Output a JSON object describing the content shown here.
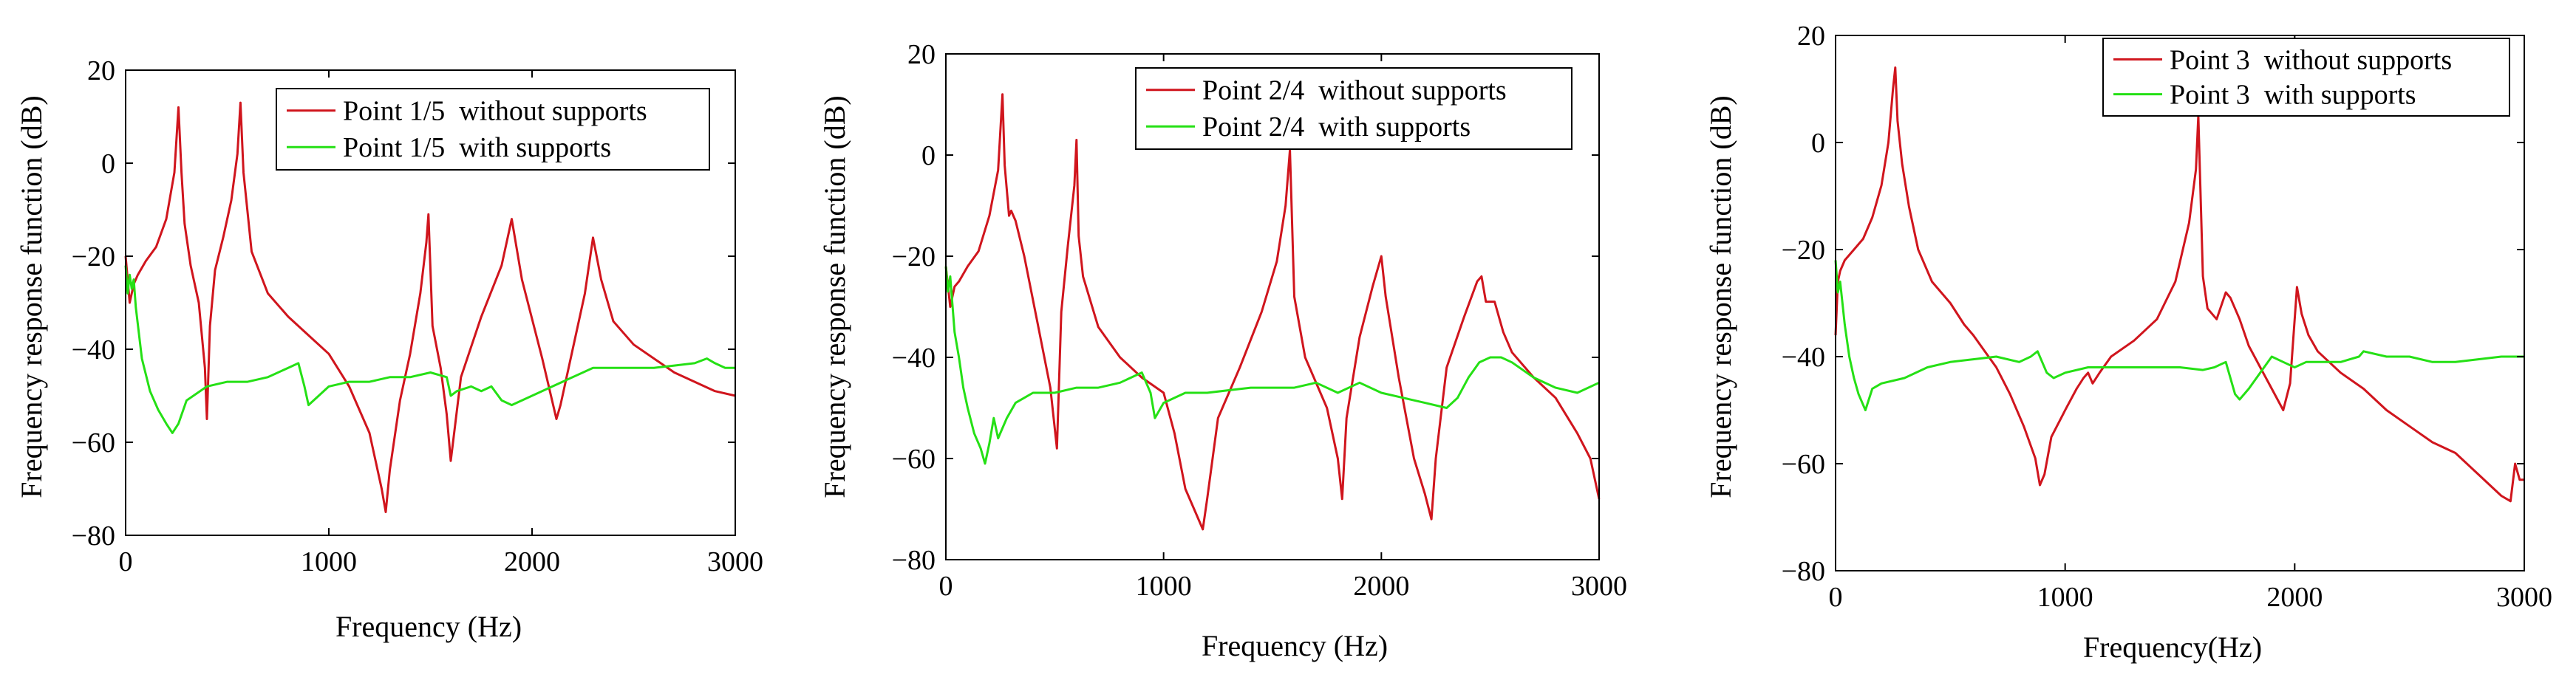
{
  "colors": {
    "without": "#d0151d",
    "with": "#25e015",
    "axis": "#000000",
    "background": "#ffffff"
  },
  "chart_data": [
    {
      "type": "line",
      "title": "",
      "xlabel": "Frequency (Hz)",
      "ylabel": "Frequency response function  (dB)",
      "xlim": [
        0,
        3000
      ],
      "ylim": [
        -80,
        20
      ],
      "xticks": [
        "0",
        "1000",
        "2000",
        "3000"
      ],
      "yticks": [
        "20",
        "0",
        "−20",
        "−40",
        "−60",
        "−80"
      ],
      "legend": {
        "position": "top-right"
      },
      "series": [
        {
          "name": "Point 1/5  without supports",
          "color": "#d0151d",
          "x": [
            0,
            20,
            40,
            60,
            100,
            150,
            200,
            240,
            260,
            275,
            290,
            320,
            360,
            390,
            400,
            415,
            440,
            480,
            520,
            550,
            565,
            580,
            620,
            700,
            800,
            900,
            1000,
            1100,
            1200,
            1260,
            1280,
            1300,
            1350,
            1400,
            1450,
            1480,
            1490,
            1510,
            1550,
            1580,
            1600,
            1650,
            1750,
            1850,
            1900,
            1950,
            2050,
            2120,
            2140,
            2200,
            2260,
            2300,
            2340,
            2400,
            2500,
            2600,
            2700,
            2800,
            2900,
            3000
          ],
          "y": [
            -20,
            -30,
            -26,
            -24,
            -21,
            -18,
            -12,
            -2,
            12,
            -2,
            -13,
            -22,
            -30,
            -44,
            -55,
            -35,
            -23,
            -16,
            -8,
            2,
            13,
            -2,
            -19,
            -28,
            -33,
            -37,
            -41,
            -48,
            -58,
            -70,
            -75,
            -66,
            -51,
            -41,
            -28,
            -17,
            -11,
            -35,
            -44,
            -54,
            -64,
            -46,
            -33,
            -22,
            -12,
            -25,
            -42,
            -55,
            -52,
            -40,
            -28,
            -16,
            -25,
            -34,
            -39,
            -42,
            -45,
            -47,
            -49,
            -50
          ]
        },
        {
          "name": "Point 1/5  with supports",
          "color": "#25e015",
          "x": [
            0,
            10,
            20,
            30,
            40,
            50,
            80,
            120,
            160,
            200,
            230,
            260,
            300,
            400,
            500,
            600,
            700,
            800,
            850,
            880,
            900,
            950,
            1000,
            1100,
            1200,
            1300,
            1400,
            1500,
            1580,
            1600,
            1630,
            1700,
            1750,
            1800,
            1850,
            1900,
            2000,
            2100,
            2200,
            2300,
            2400,
            2500,
            2600,
            2700,
            2800,
            2860,
            2900,
            2950,
            3000
          ],
          "y": [
            -22,
            -28,
            -24,
            -27,
            -25,
            -31,
            -42,
            -49,
            -53,
            -56,
            -58,
            -56,
            -51,
            -48,
            -47,
            -47,
            -46,
            -44,
            -43,
            -48,
            -52,
            -50,
            -48,
            -47,
            -47,
            -46,
            -46,
            -45,
            -46,
            -50,
            -49,
            -48,
            -49,
            -48,
            -51,
            -52,
            -50,
            -48,
            -46,
            -44,
            -44,
            -44,
            -44,
            -43.5,
            -43,
            -42,
            -43,
            -44,
            -44
          ]
        }
      ]
    },
    {
      "type": "line",
      "title": "",
      "xlabel": "Frequency (Hz)",
      "ylabel": "Frequency response function  (dB)",
      "xlim": [
        0,
        3000
      ],
      "ylim": [
        -80,
        20
      ],
      "xticks": [
        "0",
        "1000",
        "2000",
        "3000"
      ],
      "yticks": [
        "20",
        "0",
        "−20",
        "−40",
        "−60",
        "−80"
      ],
      "legend": {
        "position": "top-right"
      },
      "series": [
        {
          "name": "Point 2/4  without supports",
          "color": "#d0151d",
          "x": [
            0,
            20,
            40,
            60,
            100,
            150,
            200,
            240,
            260,
            270,
            290,
            300,
            320,
            360,
            420,
            480,
            510,
            530,
            560,
            590,
            600,
            610,
            630,
            700,
            800,
            900,
            1000,
            1050,
            1100,
            1150,
            1180,
            1200,
            1250,
            1350,
            1450,
            1520,
            1560,
            1580,
            1600,
            1650,
            1750,
            1800,
            1820,
            1840,
            1900,
            1960,
            2000,
            2020,
            2080,
            2150,
            2200,
            2230,
            2250,
            2300,
            2380,
            2440,
            2460,
            2480,
            2520,
            2560,
            2600,
            2700,
            2800,
            2900,
            2960,
            3000
          ],
          "y": [
            -22,
            -30,
            -26,
            -25,
            -22,
            -19,
            -12,
            -3,
            12,
            -2,
            -12,
            -11,
            -13,
            -20,
            -33,
            -46,
            -58,
            -31,
            -18,
            -6,
            3,
            -16,
            -24,
            -34,
            -40,
            -44,
            -47,
            -55,
            -66,
            -71,
            -74,
            -68,
            -52,
            -42,
            -31,
            -21,
            -10,
            1,
            -28,
            -40,
            -50,
            -60,
            -68,
            -52,
            -36,
            -26,
            -20,
            -28,
            -44,
            -60,
            -67,
            -72,
            -60,
            -42,
            -32,
            -25,
            -24,
            -29,
            -29,
            -35,
            -39,
            -44,
            -48,
            -55,
            -60,
            -68
          ]
        },
        {
          "name": "Point 2/4  with supports",
          "color": "#25e015",
          "x": [
            0,
            10,
            20,
            40,
            60,
            80,
            100,
            130,
            160,
            180,
            200,
            220,
            240,
            260,
            280,
            320,
            360,
            400,
            500,
            600,
            700,
            800,
            900,
            920,
            940,
            960,
            1000,
            1100,
            1200,
            1300,
            1400,
            1500,
            1600,
            1700,
            1800,
            1900,
            2000,
            2100,
            2200,
            2300,
            2350,
            2400,
            2450,
            2500,
            2550,
            2600,
            2700,
            2800,
            2900,
            3000
          ],
          "y": [
            -22,
            -27,
            -24,
            -35,
            -40,
            -46,
            -50,
            -55,
            -58,
            -61,
            -57,
            -52,
            -56,
            -54,
            -52,
            -49,
            -48,
            -47,
            -47,
            -46,
            -46,
            -45,
            -43,
            -45,
            -47,
            -52,
            -49,
            -47,
            -47,
            -46.5,
            -46,
            -46,
            -46,
            -45,
            -47,
            -45,
            -47,
            -48,
            -49,
            -50,
            -48,
            -44,
            -41,
            -40,
            -40,
            -41,
            -44,
            -46,
            -47,
            -45
          ]
        }
      ]
    },
    {
      "type": "line",
      "title": "",
      "xlabel": "Frequency(Hz)",
      "ylabel": "Frequency response function  (dB)",
      "xlim": [
        0,
        3000
      ],
      "ylim": [
        -80,
        20
      ],
      "xticks": [
        "0",
        "1000",
        "2000",
        "3000"
      ],
      "yticks": [
        "20",
        "0",
        "−20",
        "−40",
        "−60",
        "−80"
      ],
      "legend": {
        "position": "top-right"
      },
      "series": [
        {
          "name": "Point 3  without supports",
          "color": "#d0151d",
          "x": [
            0,
            10,
            20,
            40,
            80,
            120,
            160,
            200,
            230,
            250,
            260,
            270,
            290,
            320,
            360,
            420,
            500,
            560,
            600,
            650,
            700,
            760,
            820,
            870,
            890,
            910,
            940,
            1000,
            1050,
            1080,
            1100,
            1120,
            1150,
            1200,
            1300,
            1400,
            1480,
            1540,
            1570,
            1580,
            1600,
            1620,
            1660,
            1700,
            1720,
            1760,
            1800,
            1850,
            1900,
            1950,
            1980,
            2010,
            2030,
            2060,
            2100,
            2200,
            2300,
            2400,
            2500,
            2600,
            2700,
            2800,
            2900,
            2940,
            2960,
            2980,
            3000
          ],
          "y": [
            -36,
            -26,
            -24,
            -22,
            -20,
            -18,
            -14,
            -8,
            0,
            10,
            14,
            4,
            -4,
            -12,
            -20,
            -26,
            -30,
            -34,
            -36,
            -39,
            -42,
            -47,
            -53,
            -59,
            -64,
            -62,
            -55,
            -50,
            -46,
            -44,
            -43,
            -45,
            -43,
            -40,
            -37,
            -33,
            -26,
            -15,
            -5,
            5,
            -25,
            -31,
            -33,
            -28,
            -29,
            -33,
            -38,
            -42,
            -46,
            -50,
            -45,
            -27,
            -32,
            -36,
            -39,
            -43,
            -46,
            -50,
            -53,
            -56,
            -58,
            -62,
            -66,
            -67,
            -60,
            -63,
            -63
          ]
        },
        {
          "name": "Point 3  with supports",
          "color": "#25e015",
          "x": [
            0,
            10,
            20,
            40,
            60,
            80,
            100,
            130,
            160,
            200,
            300,
            400,
            500,
            600,
            700,
            800,
            850,
            880,
            900,
            920,
            950,
            1000,
            1100,
            1200,
            1300,
            1400,
            1500,
            1600,
            1650,
            1700,
            1740,
            1760,
            1800,
            1850,
            1900,
            1950,
            2000,
            2050,
            2100,
            2200,
            2280,
            2300,
            2400,
            2500,
            2600,
            2700,
            2800,
            2900,
            3000
          ],
          "y": [
            -22,
            -28,
            -26,
            -34,
            -40,
            -44,
            -47,
            -50,
            -46,
            -45,
            -44,
            -42,
            -41,
            -40.5,
            -40,
            -41,
            -40,
            -39,
            -41,
            -43,
            -44,
            -43,
            -42,
            -42,
            -42,
            -42,
            -42,
            -42.5,
            -42,
            -41,
            -47,
            -48,
            -46,
            -43,
            -40,
            -41,
            -42,
            -41,
            -41,
            -41,
            -40,
            -39,
            -40,
            -40,
            -41,
            -41,
            -40.5,
            -40,
            -40
          ]
        }
      ]
    }
  ]
}
